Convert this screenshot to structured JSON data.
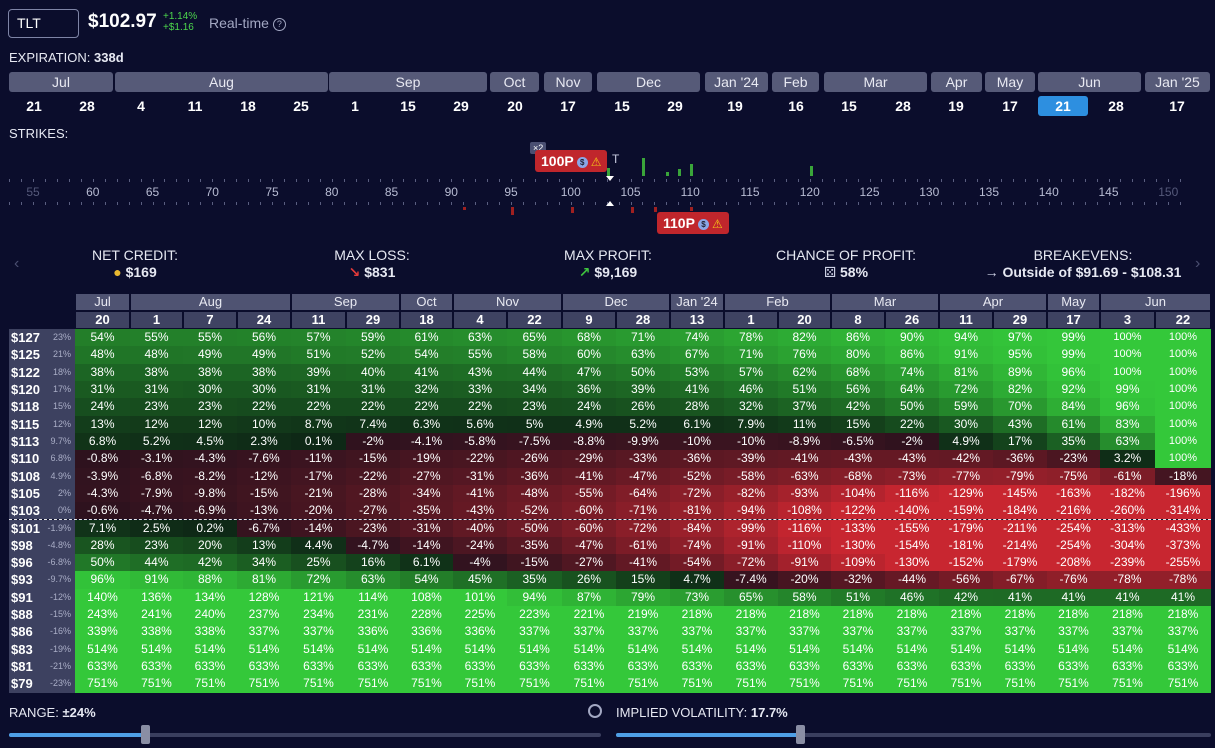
{
  "header": {
    "ticker": "TLT",
    "price": "$102.97",
    "change_pct": "+1.14%",
    "change_abs": "+$1.16",
    "realtime": "Real-time",
    "help_icon": "question-circle-icon"
  },
  "expiration": {
    "label": "EXPIRATION:",
    "value": "338d"
  },
  "exp_months": [
    "Jul",
    "Aug",
    "Sep",
    "Oct",
    "Nov",
    "Dec",
    "Jan '24",
    "Feb",
    "Mar",
    "Apr",
    "May",
    "Jun",
    "Jan '25"
  ],
  "exp_days": [
    "21",
    "28",
    "4",
    "11",
    "18",
    "25",
    "1",
    "15",
    "29",
    "20",
    "17",
    "15",
    "29",
    "19",
    "16",
    "15",
    "28",
    "19",
    "17",
    "21",
    "28",
    "17"
  ],
  "strikes": {
    "label": "STRIKES:",
    "ticks": [
      "55",
      "60",
      "65",
      "70",
      "75",
      "80",
      "85",
      "90",
      "95",
      "100",
      "105",
      "110",
      "115",
      "120",
      "125",
      "130",
      "135",
      "140",
      "145",
      "150"
    ],
    "multiplier": "×2",
    "tag_top": "100P",
    "tag_bottom": "110P",
    "marker_t": "T"
  },
  "stats": {
    "net_credit": {
      "label": "NET CREDIT:",
      "value": "$169",
      "icon": "coins-icon"
    },
    "max_loss": {
      "label": "MAX LOSS:",
      "value": "$831",
      "icon": "arrow-down-right-icon"
    },
    "max_profit": {
      "label": "MAX PROFIT:",
      "value": "$9,169",
      "icon": "arrow-up-right-icon"
    },
    "chance": {
      "label": "CHANCE OF PROFIT:",
      "value": "58%",
      "icon": "dice-icon"
    },
    "breakevens": {
      "label": "BREAKEVENS:",
      "value": "Outside of $91.69 - $108.31",
      "icon": "arrow-right-icon"
    }
  },
  "table": {
    "months": [
      "Jul",
      "Aug",
      "Sep",
      "Oct",
      "Nov",
      "Dec",
      "Jan '24",
      "Feb",
      "Mar",
      "Apr",
      "May",
      "Jun"
    ],
    "days": [
      "20",
      "1",
      "7",
      "24",
      "11",
      "29",
      "18",
      "4",
      "22",
      "9",
      "28",
      "13",
      "1",
      "20",
      "8",
      "26",
      "11",
      "29",
      "17",
      "3",
      "22"
    ],
    "rows": [
      {
        "price": "$127",
        "pct": "23%",
        "cells": [
          "54%",
          "55%",
          "55%",
          "56%",
          "57%",
          "59%",
          "61%",
          "63%",
          "65%",
          "68%",
          "71%",
          "74%",
          "78%",
          "82%",
          "86%",
          "90%",
          "94%",
          "97%",
          "99%",
          "100%",
          "100%"
        ]
      },
      {
        "price": "$125",
        "pct": "21%",
        "cells": [
          "48%",
          "48%",
          "49%",
          "49%",
          "51%",
          "52%",
          "54%",
          "55%",
          "58%",
          "60%",
          "63%",
          "67%",
          "71%",
          "76%",
          "80%",
          "86%",
          "91%",
          "95%",
          "99%",
          "100%",
          "100%"
        ]
      },
      {
        "price": "$122",
        "pct": "18%",
        "cells": [
          "38%",
          "38%",
          "38%",
          "38%",
          "39%",
          "40%",
          "41%",
          "43%",
          "44%",
          "47%",
          "50%",
          "53%",
          "57%",
          "62%",
          "68%",
          "74%",
          "81%",
          "89%",
          "96%",
          "100%",
          "100%"
        ]
      },
      {
        "price": "$120",
        "pct": "17%",
        "cells": [
          "31%",
          "31%",
          "30%",
          "30%",
          "31%",
          "31%",
          "32%",
          "33%",
          "34%",
          "36%",
          "39%",
          "41%",
          "46%",
          "51%",
          "56%",
          "64%",
          "72%",
          "82%",
          "92%",
          "99%",
          "100%"
        ]
      },
      {
        "price": "$118",
        "pct": "15%",
        "cells": [
          "24%",
          "23%",
          "23%",
          "22%",
          "22%",
          "22%",
          "22%",
          "22%",
          "23%",
          "24%",
          "26%",
          "28%",
          "32%",
          "37%",
          "42%",
          "50%",
          "59%",
          "70%",
          "84%",
          "96%",
          "100%"
        ]
      },
      {
        "price": "$115",
        "pct": "12%",
        "cells": [
          "13%",
          "12%",
          "12%",
          "10%",
          "8.7%",
          "7.4%",
          "6.3%",
          "5.6%",
          "5%",
          "4.9%",
          "5.2%",
          "6.1%",
          "7.9%",
          "11%",
          "15%",
          "22%",
          "30%",
          "43%",
          "61%",
          "83%",
          "100%"
        ]
      },
      {
        "price": "$113",
        "pct": "9.7%",
        "cells": [
          "6.8%",
          "5.2%",
          "4.5%",
          "2.3%",
          "0.1%",
          "-2%",
          "-4.1%",
          "-5.8%",
          "-7.5%",
          "-8.8%",
          "-9.9%",
          "-10%",
          "-10%",
          "-8.9%",
          "-6.5%",
          "-2%",
          "4.9%",
          "17%",
          "35%",
          "63%",
          "100%"
        ]
      },
      {
        "price": "$110",
        "pct": "6.8%",
        "cells": [
          "-0.8%",
          "-3.1%",
          "-4.3%",
          "-7.6%",
          "-11%",
          "-15%",
          "-19%",
          "-22%",
          "-26%",
          "-29%",
          "-33%",
          "-36%",
          "-39%",
          "-41%",
          "-43%",
          "-43%",
          "-42%",
          "-36%",
          "-23%",
          "3.2%",
          "100%"
        ]
      },
      {
        "price": "$108",
        "pct": "4.9%",
        "cells": [
          "-3.9%",
          "-6.8%",
          "-8.2%",
          "-12%",
          "-17%",
          "-22%",
          "-27%",
          "-31%",
          "-36%",
          "-41%",
          "-47%",
          "-52%",
          "-58%",
          "-63%",
          "-68%",
          "-73%",
          "-77%",
          "-79%",
          "-75%",
          "-61%",
          "-18%"
        ]
      },
      {
        "price": "$105",
        "pct": "2%",
        "cells": [
          "-4.3%",
          "-7.9%",
          "-9.8%",
          "-15%",
          "-21%",
          "-28%",
          "-34%",
          "-41%",
          "-48%",
          "-55%",
          "-64%",
          "-72%",
          "-82%",
          "-93%",
          "-104%",
          "-116%",
          "-129%",
          "-145%",
          "-163%",
          "-182%",
          "-196%"
        ]
      },
      {
        "price": "$103",
        "pct": "0%",
        "cells": [
          "-0.6%",
          "-4.7%",
          "-6.9%",
          "-13%",
          "-20%",
          "-27%",
          "-35%",
          "-43%",
          "-52%",
          "-60%",
          "-71%",
          "-81%",
          "-94%",
          "-108%",
          "-122%",
          "-140%",
          "-159%",
          "-184%",
          "-216%",
          "-260%",
          "-314%"
        ]
      },
      {
        "price": "$101",
        "pct": "-1.9%",
        "cells": [
          "7.1%",
          "2.5%",
          "0.2%",
          "-6.7%",
          "-14%",
          "-23%",
          "-31%",
          "-40%",
          "-50%",
          "-60%",
          "-72%",
          "-84%",
          "-99%",
          "-116%",
          "-133%",
          "-155%",
          "-179%",
          "-211%",
          "-254%",
          "-313%",
          "-433%"
        ]
      },
      {
        "price": "$98",
        "pct": "-4.8%",
        "cells": [
          "28%",
          "23%",
          "20%",
          "13%",
          "4.4%",
          "-4.7%",
          "-14%",
          "-24%",
          "-35%",
          "-47%",
          "-61%",
          "-74%",
          "-91%",
          "-110%",
          "-130%",
          "-154%",
          "-181%",
          "-214%",
          "-254%",
          "-304%",
          "-373%"
        ]
      },
      {
        "price": "$96",
        "pct": "-6.8%",
        "cells": [
          "50%",
          "44%",
          "42%",
          "34%",
          "25%",
          "16%",
          "6.1%",
          "-4%",
          "-15%",
          "-27%",
          "-41%",
          "-54%",
          "-72%",
          "-91%",
          "-109%",
          "-130%",
          "-152%",
          "-179%",
          "-208%",
          "-239%",
          "-255%"
        ]
      },
      {
        "price": "$93",
        "pct": "-9.7%",
        "cells": [
          "96%",
          "91%",
          "88%",
          "81%",
          "72%",
          "63%",
          "54%",
          "45%",
          "35%",
          "26%",
          "15%",
          "4.7%",
          "-7.4%",
          "-20%",
          "-32%",
          "-44%",
          "-56%",
          "-67%",
          "-76%",
          "-78%",
          "-78%"
        ]
      },
      {
        "price": "$91",
        "pct": "-12%",
        "cells": [
          "140%",
          "136%",
          "134%",
          "128%",
          "121%",
          "114%",
          "108%",
          "101%",
          "94%",
          "87%",
          "79%",
          "73%",
          "65%",
          "58%",
          "51%",
          "46%",
          "42%",
          "41%",
          "41%",
          "41%",
          "41%"
        ]
      },
      {
        "price": "$88",
        "pct": "-15%",
        "cells": [
          "243%",
          "241%",
          "240%",
          "237%",
          "234%",
          "231%",
          "228%",
          "225%",
          "223%",
          "221%",
          "219%",
          "218%",
          "218%",
          "218%",
          "218%",
          "218%",
          "218%",
          "218%",
          "218%",
          "218%",
          "218%"
        ]
      },
      {
        "price": "$86",
        "pct": "-16%",
        "cells": [
          "339%",
          "338%",
          "338%",
          "337%",
          "337%",
          "336%",
          "336%",
          "336%",
          "337%",
          "337%",
          "337%",
          "337%",
          "337%",
          "337%",
          "337%",
          "337%",
          "337%",
          "337%",
          "337%",
          "337%",
          "337%"
        ]
      },
      {
        "price": "$83",
        "pct": "-19%",
        "cells": [
          "514%",
          "514%",
          "514%",
          "514%",
          "514%",
          "514%",
          "514%",
          "514%",
          "514%",
          "514%",
          "514%",
          "514%",
          "514%",
          "514%",
          "514%",
          "514%",
          "514%",
          "514%",
          "514%",
          "514%",
          "514%"
        ]
      },
      {
        "price": "$81",
        "pct": "-21%",
        "cells": [
          "633%",
          "633%",
          "633%",
          "633%",
          "633%",
          "633%",
          "633%",
          "633%",
          "633%",
          "633%",
          "633%",
          "633%",
          "633%",
          "633%",
          "633%",
          "633%",
          "633%",
          "633%",
          "633%",
          "633%",
          "633%"
        ]
      },
      {
        "price": "$79",
        "pct": "-23%",
        "cells": [
          "751%",
          "751%",
          "751%",
          "751%",
          "751%",
          "751%",
          "751%",
          "751%",
          "751%",
          "751%",
          "751%",
          "751%",
          "751%",
          "751%",
          "751%",
          "751%",
          "751%",
          "751%",
          "751%",
          "751%",
          "751%"
        ]
      }
    ]
  },
  "range": {
    "label": "RANGE:",
    "value": "±24%",
    "level": 0.23
  },
  "iv": {
    "label": "IMPLIED VOLATILITY:",
    "value": "17.7%",
    "level": 0.31
  }
}
